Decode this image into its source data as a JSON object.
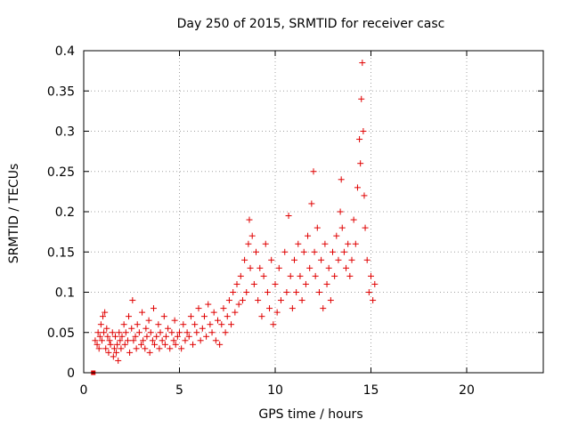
{
  "chart_data": {
    "type": "scatter",
    "title": "Day 250 of 2015, SRMTID for receiver casc",
    "xlabel": "GPS time / hours",
    "ylabel": "SRMTID / TECUs",
    "xlim": [
      0,
      24
    ],
    "ylim": [
      0,
      0.4
    ],
    "x_ticks": [
      0,
      5,
      10,
      15,
      20
    ],
    "x_tick_labels": [
      "0",
      "5",
      "10",
      "15",
      "20"
    ],
    "y_ticks": [
      0,
      0.05,
      0.1,
      0.15,
      0.2,
      0.25,
      0.3,
      0.35,
      0.4
    ],
    "y_tick_labels": [
      "0",
      "0.05",
      "0.1",
      "0.15",
      "0.2",
      "0.25",
      "0.3",
      "0.35",
      "0.4"
    ],
    "grid": true,
    "marker": "+",
    "series": [
      {
        "name": "SRMTID",
        "color": "#e00000",
        "points": [
          [
            0.5,
            0.0
          ],
          [
            0.6,
            0.04
          ],
          [
            0.7,
            0.035
          ],
          [
            0.75,
            0.05
          ],
          [
            0.8,
            0.03
          ],
          [
            0.85,
            0.045
          ],
          [
            0.9,
            0.06
          ],
          [
            0.95,
            0.04
          ],
          [
            1.0,
            0.07
          ],
          [
            1.05,
            0.05
          ],
          [
            1.1,
            0.075
          ],
          [
            1.15,
            0.03
          ],
          [
            1.2,
            0.055
          ],
          [
            1.25,
            0.045
          ],
          [
            1.3,
            0.025
          ],
          [
            1.35,
            0.04
          ],
          [
            1.4,
            0.035
          ],
          [
            1.5,
            0.05
          ],
          [
            1.55,
            0.02
          ],
          [
            1.6,
            0.03
          ],
          [
            1.65,
            0.045
          ],
          [
            1.7,
            0.025
          ],
          [
            1.75,
            0.035
          ],
          [
            1.8,
            0.015
          ],
          [
            1.85,
            0.05
          ],
          [
            1.9,
            0.04
          ],
          [
            1.95,
            0.03
          ],
          [
            2.0,
            0.045
          ],
          [
            2.1,
            0.06
          ],
          [
            2.15,
            0.035
          ],
          [
            2.2,
            0.05
          ],
          [
            2.3,
            0.04
          ],
          [
            2.35,
            0.07
          ],
          [
            2.4,
            0.025
          ],
          [
            2.5,
            0.055
          ],
          [
            2.55,
            0.09
          ],
          [
            2.6,
            0.04
          ],
          [
            2.7,
            0.045
          ],
          [
            2.75,
            0.03
          ],
          [
            2.8,
            0.06
          ],
          [
            2.9,
            0.05
          ],
          [
            3.0,
            0.035
          ],
          [
            3.05,
            0.075
          ],
          [
            3.1,
            0.04
          ],
          [
            3.2,
            0.03
          ],
          [
            3.25,
            0.055
          ],
          [
            3.3,
            0.045
          ],
          [
            3.4,
            0.065
          ],
          [
            3.45,
            0.025
          ],
          [
            3.5,
            0.05
          ],
          [
            3.6,
            0.04
          ],
          [
            3.65,
            0.08
          ],
          [
            3.7,
            0.035
          ],
          [
            3.8,
            0.045
          ],
          [
            3.9,
            0.06
          ],
          [
            3.95,
            0.03
          ],
          [
            4.0,
            0.05
          ],
          [
            4.1,
            0.04
          ],
          [
            4.2,
            0.07
          ],
          [
            4.25,
            0.035
          ],
          [
            4.3,
            0.045
          ],
          [
            4.4,
            0.055
          ],
          [
            4.5,
            0.03
          ],
          [
            4.6,
            0.05
          ],
          [
            4.7,
            0.04
          ],
          [
            4.75,
            0.065
          ],
          [
            4.8,
            0.035
          ],
          [
            4.9,
            0.045
          ],
          [
            5.0,
            0.05
          ],
          [
            5.1,
            0.03
          ],
          [
            5.2,
            0.06
          ],
          [
            5.3,
            0.04
          ],
          [
            5.4,
            0.05
          ],
          [
            5.5,
            0.045
          ],
          [
            5.6,
            0.07
          ],
          [
            5.7,
            0.035
          ],
          [
            5.8,
            0.06
          ],
          [
            5.9,
            0.05
          ],
          [
            6.0,
            0.08
          ],
          [
            6.1,
            0.04
          ],
          [
            6.2,
            0.055
          ],
          [
            6.3,
            0.07
          ],
          [
            6.4,
            0.045
          ],
          [
            6.5,
            0.085
          ],
          [
            6.6,
            0.06
          ],
          [
            6.7,
            0.05
          ],
          [
            6.8,
            0.075
          ],
          [
            6.9,
            0.04
          ],
          [
            7.0,
            0.065
          ],
          [
            7.1,
            0.035
          ],
          [
            7.2,
            0.06
          ],
          [
            7.3,
            0.08
          ],
          [
            7.4,
            0.05
          ],
          [
            7.5,
            0.07
          ],
          [
            7.6,
            0.09
          ],
          [
            7.7,
            0.06
          ],
          [
            7.8,
            0.1
          ],
          [
            7.9,
            0.075
          ],
          [
            8.0,
            0.11
          ],
          [
            8.1,
            0.085
          ],
          [
            8.2,
            0.12
          ],
          [
            8.3,
            0.09
          ],
          [
            8.4,
            0.14
          ],
          [
            8.5,
            0.1
          ],
          [
            8.6,
            0.16
          ],
          [
            8.65,
            0.19
          ],
          [
            8.7,
            0.13
          ],
          [
            8.8,
            0.17
          ],
          [
            8.9,
            0.11
          ],
          [
            9.0,
            0.15
          ],
          [
            9.1,
            0.09
          ],
          [
            9.2,
            0.13
          ],
          [
            9.3,
            0.07
          ],
          [
            9.4,
            0.12
          ],
          [
            9.5,
            0.16
          ],
          [
            9.6,
            0.1
          ],
          [
            9.7,
            0.08
          ],
          [
            9.8,
            0.14
          ],
          [
            9.9,
            0.06
          ],
          [
            10.0,
            0.11
          ],
          [
            10.1,
            0.075
          ],
          [
            10.2,
            0.13
          ],
          [
            10.3,
            0.09
          ],
          [
            10.5,
            0.15
          ],
          [
            10.6,
            0.1
          ],
          [
            10.7,
            0.195
          ],
          [
            10.8,
            0.12
          ],
          [
            10.9,
            0.08
          ],
          [
            11.0,
            0.14
          ],
          [
            11.1,
            0.1
          ],
          [
            11.2,
            0.16
          ],
          [
            11.3,
            0.12
          ],
          [
            11.4,
            0.09
          ],
          [
            11.5,
            0.15
          ],
          [
            11.6,
            0.11
          ],
          [
            11.7,
            0.17
          ],
          [
            11.8,
            0.13
          ],
          [
            11.9,
            0.21
          ],
          [
            12.0,
            0.25
          ],
          [
            12.05,
            0.15
          ],
          [
            12.1,
            0.12
          ],
          [
            12.2,
            0.18
          ],
          [
            12.3,
            0.1
          ],
          [
            12.4,
            0.14
          ],
          [
            12.5,
            0.08
          ],
          [
            12.6,
            0.16
          ],
          [
            12.7,
            0.11
          ],
          [
            12.8,
            0.13
          ],
          [
            12.9,
            0.09
          ],
          [
            13.0,
            0.15
          ],
          [
            13.1,
            0.12
          ],
          [
            13.2,
            0.17
          ],
          [
            13.3,
            0.14
          ],
          [
            13.4,
            0.2
          ],
          [
            13.45,
            0.24
          ],
          [
            13.5,
            0.18
          ],
          [
            13.6,
            0.15
          ],
          [
            13.7,
            0.13
          ],
          [
            13.8,
            0.16
          ],
          [
            13.9,
            0.12
          ],
          [
            14.0,
            0.14
          ],
          [
            14.1,
            0.19
          ],
          [
            14.2,
            0.16
          ],
          [
            14.3,
            0.23
          ],
          [
            14.4,
            0.29
          ],
          [
            14.45,
            0.26
          ],
          [
            14.5,
            0.34
          ],
          [
            14.55,
            0.385
          ],
          [
            14.6,
            0.3
          ],
          [
            14.65,
            0.22
          ],
          [
            14.7,
            0.18
          ],
          [
            14.8,
            0.14
          ],
          [
            14.9,
            0.1
          ],
          [
            15.0,
            0.12
          ],
          [
            15.1,
            0.09
          ],
          [
            15.2,
            0.11
          ]
        ]
      }
    ]
  }
}
